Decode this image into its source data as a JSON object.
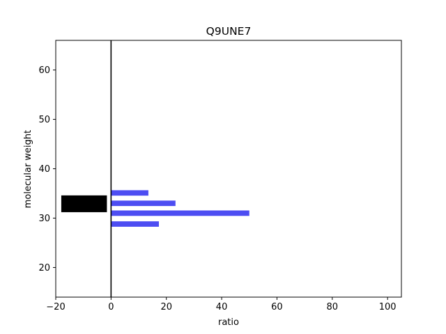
{
  "chart_data": {
    "type": "bar",
    "orientation": "horizontal",
    "title": "Q9UNE7",
    "xlabel": "ratio",
    "ylabel": "molecular weight",
    "xlim": [
      -20,
      105
    ],
    "ylim": [
      14,
      66
    ],
    "xticks": [
      -20,
      0,
      20,
      40,
      60,
      80,
      100
    ],
    "yticks": [
      20,
      30,
      40,
      50,
      60
    ],
    "xtick_labels": [
      "−20",
      "0",
      "20",
      "40",
      "60",
      "80",
      "100"
    ],
    "ytick_labels": [
      "20",
      "30",
      "40",
      "50",
      "60"
    ],
    "grid": false,
    "reference_line": {
      "x": 0,
      "color": "#000000"
    },
    "series": [
      {
        "color": "#4d4df2",
        "bars": [
          {
            "y": 35.1,
            "x": 13.5
          },
          {
            "y": 33.0,
            "x": 23.3
          },
          {
            "y": 31.0,
            "x": 50.0
          },
          {
            "y": 28.8,
            "x": 17.3
          }
        ],
        "bar_thickness": 1.1
      },
      {
        "color": "#000000",
        "bars": [
          {
            "y": 32.9,
            "x_start": -18.0,
            "x_end": -1.5,
            "thickness": 3.4
          }
        ]
      }
    ]
  }
}
